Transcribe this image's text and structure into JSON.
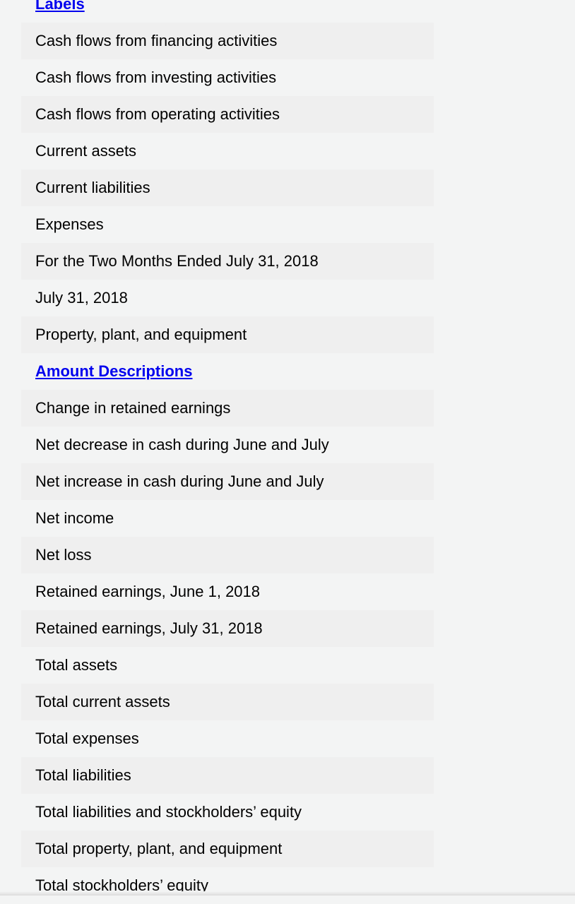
{
  "sections": [
    {
      "heading": "Labels",
      "items": [
        "Cash flows from financing activities",
        "Cash flows from investing activities",
        "Cash flows from operating activities",
        "Current assets",
        "Current liabilities",
        "Expenses",
        "For the Two Months Ended July 31, 2018",
        "July 31, 2018",
        "Property, plant, and equipment"
      ]
    },
    {
      "heading": "Amount Descriptions",
      "items": [
        "Change in retained earnings",
        "Net decrease in cash during June and July",
        "Net increase in cash during June and July",
        "Net income",
        "Net loss",
        "Retained earnings, June 1, 2018",
        "Retained earnings, July 31, 2018",
        "Total assets",
        "Total current assets",
        "Total expenses",
        "Total liabilities",
        "Total liabilities and stockholders’ equity",
        "Total property, plant, and equipment",
        "Total stockholders’ equity"
      ]
    }
  ],
  "colors": {
    "link": "#0000ee",
    "row_shade": "#efefef",
    "background": "#f3f4f4"
  }
}
